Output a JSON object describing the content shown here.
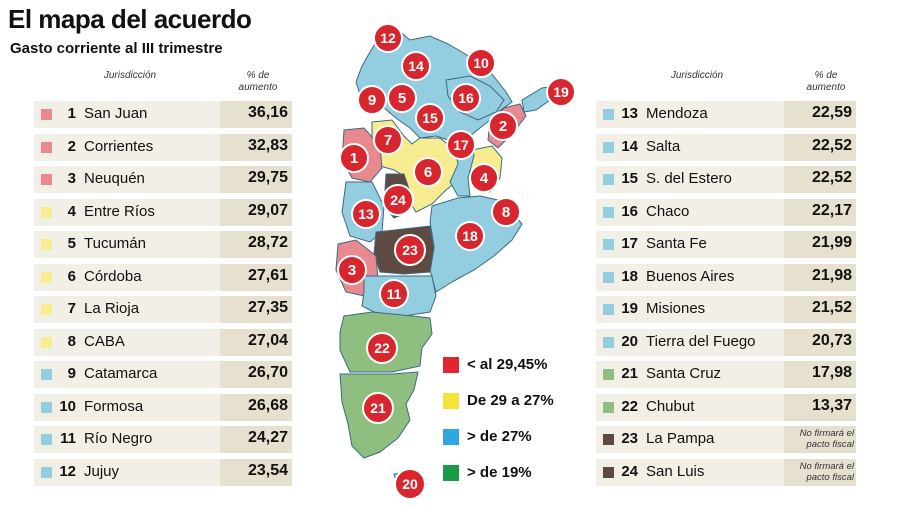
{
  "title": "El mapa del acuerdo",
  "subtitle": "Gasto corriente al III trimestre",
  "columns": {
    "jurisdiccion": "Jurisdicción",
    "aumento_line1": "% de",
    "aumento_line2": "aumento"
  },
  "colors": {
    "red": "#e8898f",
    "yellow": "#f7ec8f",
    "blue": "#93cde0",
    "green": "#8fbf80",
    "brown": "#5c4a43",
    "marker": "#d7262e"
  },
  "left_table": [
    {
      "num": "1",
      "name": "San Juan",
      "value": "36,16",
      "group": "red"
    },
    {
      "num": "2",
      "name": "Corrientes",
      "value": "32,83",
      "group": "red"
    },
    {
      "num": "3",
      "name": "Neuquén",
      "value": "29,75",
      "group": "red"
    },
    {
      "num": "4",
      "name": "Entre Ríos",
      "value": "29,07",
      "group": "yellow"
    },
    {
      "num": "5",
      "name": "Tucumán",
      "value": "28,72",
      "group": "yellow"
    },
    {
      "num": "6",
      "name": "Córdoba",
      "value": "27,61",
      "group": "yellow"
    },
    {
      "num": "7",
      "name": "La Rioja",
      "value": "27,35",
      "group": "yellow"
    },
    {
      "num": "8",
      "name": "CABA",
      "value": "27,04",
      "group": "yellow"
    },
    {
      "num": "9",
      "name": "Catamarca",
      "value": "26,70",
      "group": "blue"
    },
    {
      "num": "10",
      "name": "Formosa",
      "value": "26,68",
      "group": "blue"
    },
    {
      "num": "11",
      "name": "Río Negro",
      "value": "24,27",
      "group": "blue"
    },
    {
      "num": "12",
      "name": "Jujuy",
      "value": "23,54",
      "group": "blue"
    }
  ],
  "right_table": [
    {
      "num": "13",
      "name": "Mendoza",
      "value": "22,59",
      "group": "blue"
    },
    {
      "num": "14",
      "name": "Salta",
      "value": "22,52",
      "group": "blue"
    },
    {
      "num": "15",
      "name": "S. del Estero",
      "value": "22,52",
      "group": "blue"
    },
    {
      "num": "16",
      "name": "Chaco",
      "value": "22,17",
      "group": "blue"
    },
    {
      "num": "17",
      "name": "Santa Fe",
      "value": "21,99",
      "group": "blue"
    },
    {
      "num": "18",
      "name": "Buenos Aires",
      "value": "21,98",
      "group": "blue"
    },
    {
      "num": "19",
      "name": "Misiones",
      "value": "21,52",
      "group": "blue"
    },
    {
      "num": "20",
      "name": "Tierra del Fuego",
      "value": "20,73",
      "group": "blue"
    },
    {
      "num": "21",
      "name": "Santa Cruz",
      "value": "17,98",
      "group": "green"
    },
    {
      "num": "22",
      "name": "Chubut",
      "value": "13,37",
      "group": "green"
    },
    {
      "num": "23",
      "name": "La Pampa",
      "note_line1": "No firmará el",
      "note_line2": "pacto fiscal",
      "group": "brown"
    },
    {
      "num": "24",
      "name": "San Luis",
      "note_line1": "No firmará el",
      "note_line2": "pacto fiscal",
      "group": "brown"
    }
  ],
  "legend": [
    {
      "label": "< al 29,45%",
      "color": "#e3262d"
    },
    {
      "label": "De 29 a 27%",
      "color": "#f7e23a"
    },
    {
      "label": "> de 27%",
      "color": "#2ea8df"
    },
    {
      "label": "> de 19%",
      "color": "#1a9a47"
    }
  ],
  "map_markers": [
    "1",
    "2",
    "3",
    "4",
    "5",
    "6",
    "7",
    "8",
    "9",
    "10",
    "11",
    "12",
    "13",
    "14",
    "15",
    "16",
    "17",
    "18",
    "19",
    "20",
    "21",
    "22",
    "23",
    "24"
  ]
}
